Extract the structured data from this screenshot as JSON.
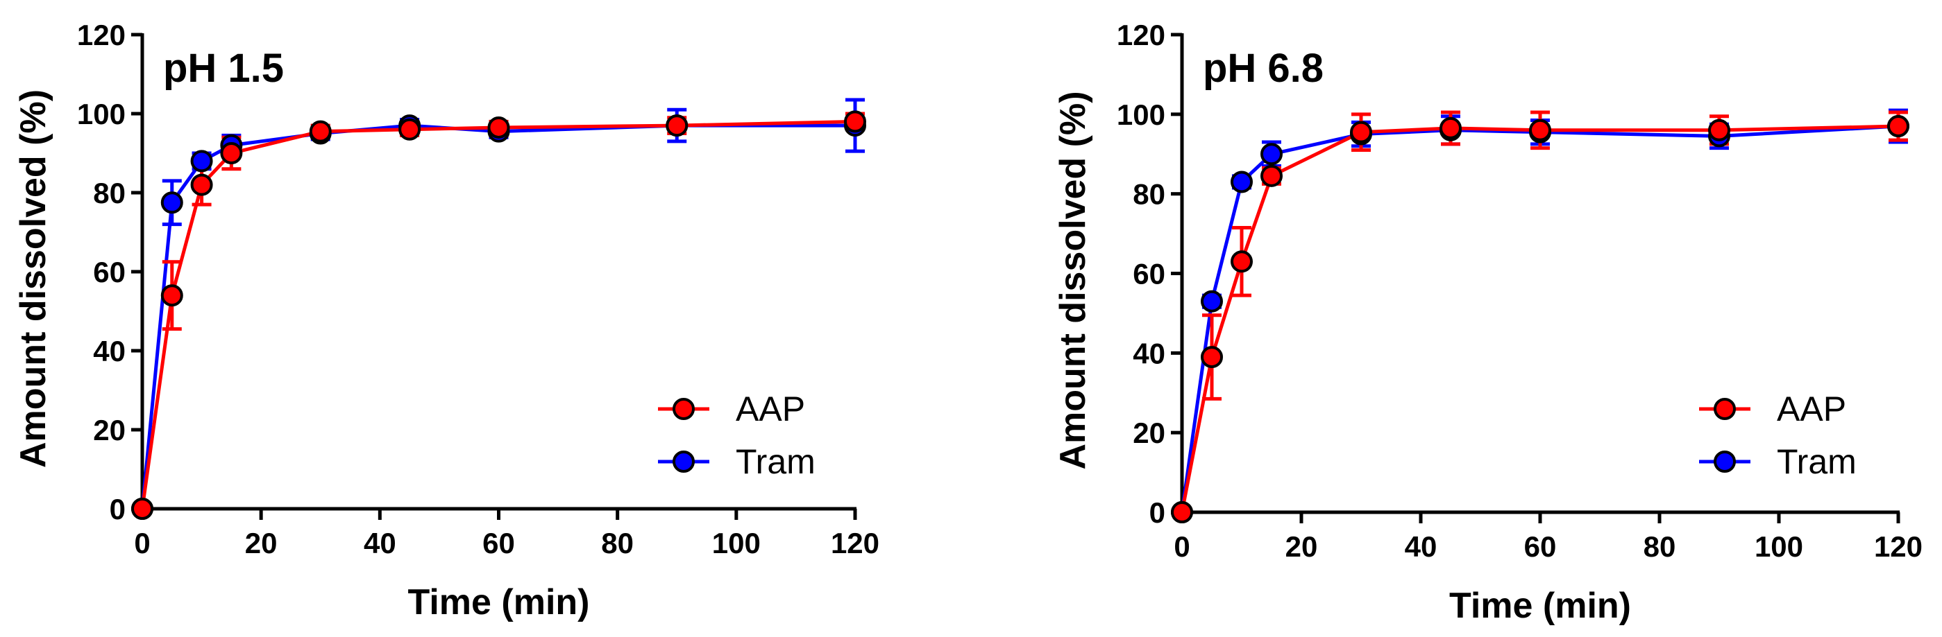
{
  "chart_data": [
    {
      "type": "line",
      "title": "pH 1.5",
      "xlabel": "Time (min)",
      "ylabel": "Amount dissolved (%)",
      "xlim": [
        0,
        120
      ],
      "ylim": [
        0,
        120
      ],
      "xticks": [
        0,
        20,
        40,
        60,
        80,
        100,
        120
      ],
      "yticks": [
        0,
        20,
        40,
        60,
        80,
        100,
        120
      ],
      "legend_position": "bottom-right",
      "series": [
        {
          "name": "AAP",
          "color": "#ff0000",
          "x": [
            0,
            5,
            10,
            15,
            30,
            45,
            60,
            90,
            120
          ],
          "y": [
            0,
            54,
            82,
            90,
            95.5,
            96,
            96.5,
            97,
            98
          ],
          "err": [
            0,
            8.5,
            5,
            4,
            1.5,
            1.5,
            1.5,
            2,
            2
          ]
        },
        {
          "name": "Tram",
          "color": "#0000ff",
          "x": [
            0,
            5,
            10,
            15,
            30,
            45,
            60,
            90,
            120
          ],
          "y": [
            0,
            77.5,
            88,
            92,
            95,
            97,
            95.5,
            97,
            97
          ],
          "err": [
            0,
            5.5,
            2,
            2.5,
            1.5,
            1.5,
            1.5,
            4,
            6.5
          ]
        }
      ]
    },
    {
      "type": "line",
      "title": "pH 6.8",
      "xlabel": "Time (min)",
      "ylabel": "Amount dissolved (%)",
      "xlim": [
        0,
        120
      ],
      "ylim": [
        0,
        120
      ],
      "xticks": [
        0,
        20,
        40,
        60,
        80,
        100,
        120
      ],
      "yticks": [
        0,
        20,
        40,
        60,
        80,
        100,
        120
      ],
      "legend_position": "bottom-right",
      "series": [
        {
          "name": "AAP",
          "color": "#ff0000",
          "x": [
            0,
            5,
            10,
            15,
            30,
            45,
            60,
            90,
            120
          ],
          "y": [
            0,
            39,
            63,
            84.5,
            95.5,
            96.5,
            96,
            96,
            97
          ],
          "err": [
            0,
            10.5,
            8.5,
            2,
            4.5,
            4,
            4.5,
            3.5,
            3.5
          ]
        },
        {
          "name": "Tram",
          "color": "#0000ff",
          "x": [
            0,
            5,
            10,
            15,
            30,
            45,
            60,
            90,
            120
          ],
          "y": [
            0,
            53,
            83,
            90,
            95,
            96,
            95.5,
            94.5,
            97
          ],
          "err": [
            0,
            1.5,
            1.5,
            3,
            3,
            3.5,
            3,
            3,
            4
          ]
        }
      ]
    }
  ]
}
